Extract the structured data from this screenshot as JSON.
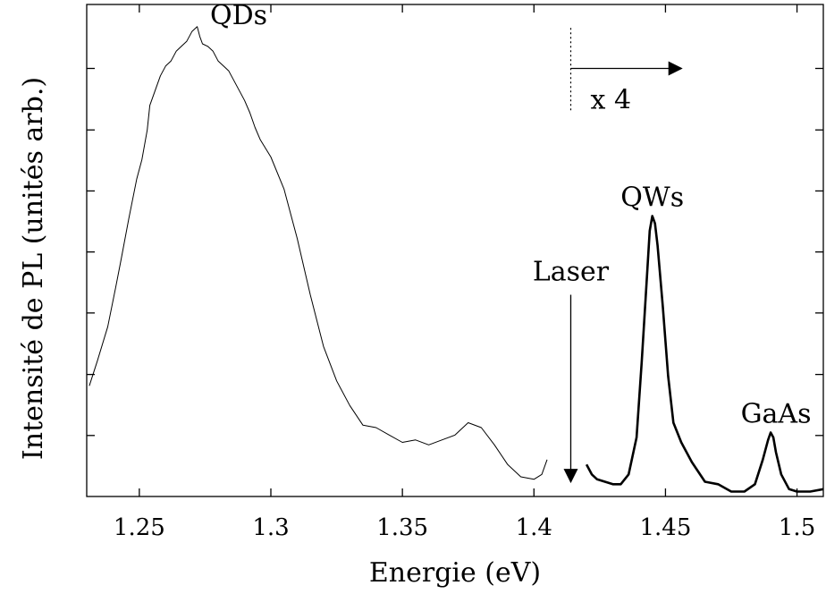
{
  "chart_data": {
    "type": "line",
    "xlabel": "Energie (eV)",
    "ylabel": "Intensité de PL (unités arb.)",
    "xlim": [
      1.23,
      1.51
    ],
    "ylim": [
      0,
      100
    ],
    "x_ticks": [
      1.25,
      1.3,
      1.35,
      1.4,
      1.45,
      1.5
    ],
    "x_tick_labels": [
      "1.25",
      "1.3",
      "1.35",
      "1.4",
      "1.45",
      "1.5"
    ],
    "y_ticks": [
      12.4,
      24.8,
      37.3,
      49.7,
      62.1,
      74.5,
      87.0
    ],
    "y_tick_labels_shown": false,
    "series": [
      {
        "line_width": "thin",
        "x": [
          1.231,
          1.234,
          1.238,
          1.241,
          1.243,
          1.246,
          1.249,
          1.251,
          1.253,
          1.254,
          1.256,
          1.258,
          1.26,
          1.262,
          1.264,
          1.266,
          1.268,
          1.27,
          1.272,
          1.273,
          1.274,
          1.276,
          1.278,
          1.28,
          1.282,
          1.284,
          1.286,
          1.288,
          1.29,
          1.292,
          1.294,
          1.296,
          1.3,
          1.305,
          1.31,
          1.315,
          1.32,
          1.325,
          1.33,
          1.335,
          1.34,
          1.345,
          1.35,
          1.355,
          1.36,
          1.365,
          1.37,
          1.375,
          1.38,
          1.385,
          1.39,
          1.395,
          1.4,
          1.403,
          1.405
        ],
        "values": [
          22.5,
          27.5,
          34.5,
          42.5,
          48.0,
          56.5,
          64.5,
          68.5,
          74.5,
          79.5,
          82.5,
          85.5,
          87.5,
          88.5,
          90.5,
          91.5,
          92.5,
          94.5,
          95.5,
          93.5,
          92.0,
          91.5,
          90.5,
          88.5,
          87.5,
          86.5,
          84.5,
          82.5,
          80.5,
          78.0,
          75.0,
          72.5,
          69.0,
          62.5,
          52.5,
          41.0,
          30.5,
          23.5,
          18.5,
          14.5,
          14.0,
          12.5,
          11.0,
          11.5,
          10.5,
          11.5,
          12.5,
          15.0,
          14.0,
          10.5,
          6.5,
          4.0,
          3.5,
          4.5,
          7.5
        ]
      },
      {
        "line_width": "thick",
        "scale_factor": "x 4",
        "x": [
          1.42,
          1.422,
          1.424,
          1.427,
          1.43,
          1.433,
          1.436,
          1.439,
          1.441,
          1.443,
          1.444,
          1.445,
          1.446,
          1.447,
          1.449,
          1.451,
          1.453,
          1.456,
          1.46,
          1.465,
          1.47,
          1.475,
          1.48,
          1.484,
          1.487,
          1.489,
          1.49,
          1.491,
          1.492,
          1.494,
          1.497,
          1.5,
          1.505,
          1.51
        ],
        "values": [
          6.5,
          4.5,
          3.5,
          3.0,
          2.5,
          2.5,
          4.5,
          12.0,
          27.5,
          45.0,
          54.0,
          57.0,
          55.5,
          51.0,
          38.5,
          24.5,
          15.0,
          11.0,
          7.0,
          3.0,
          2.5,
          1.0,
          1.0,
          2.5,
          7.5,
          11.5,
          13.0,
          12.0,
          9.0,
          4.5,
          1.5,
          1.0,
          1.0,
          1.5
        ]
      }
    ],
    "annotations": [
      {
        "text": "QDs",
        "x": 1.283,
        "y": 96
      },
      {
        "text": "QWs",
        "x": 1.445,
        "y": 59
      },
      {
        "text": "GaAs",
        "x": 1.492,
        "y": 15
      },
      {
        "text": "Laser",
        "type": "arrow-down",
        "x": 1.414,
        "y_from": 41,
        "y_to": 3
      },
      {
        "text": "x 4",
        "type": "arrow-right",
        "x_from": 1.414,
        "x_to": 1.456,
        "y": 87
      }
    ],
    "marker_line": {
      "x": 1.414,
      "y_from": 78.5,
      "y_to": 95.5,
      "style": "dotted"
    }
  }
}
